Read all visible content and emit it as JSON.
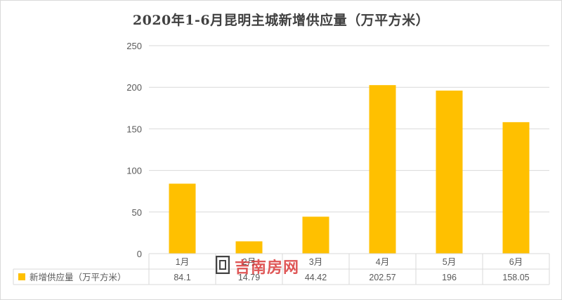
{
  "title": "2020年1-6月昆明主城新增供应量（万平方米）",
  "watermark": "吉南房网",
  "colors": {
    "bar": "#FFC000",
    "grid": "#d9d9d9",
    "text": "#595959"
  },
  "chart_data": {
    "type": "bar",
    "title": "2020年1-6月昆明主城新增供应量（万平方米）",
    "categories": [
      "1月",
      "2月",
      "3月",
      "4月",
      "5月",
      "6月"
    ],
    "series": [
      {
        "name": "新增供应量（万平方米）",
        "values": [
          84.1,
          14.79,
          44.42,
          202.57,
          196,
          158.05
        ],
        "value_labels": [
          "84.1",
          "14.79",
          "44.42",
          "202.57",
          "196",
          "158.05"
        ],
        "color": "#FFC000"
      }
    ],
    "ylim": [
      0,
      250
    ],
    "yticks": [
      "0",
      "50",
      "100",
      "150",
      "200",
      "250"
    ],
    "grid": true,
    "legend": "data-table"
  }
}
